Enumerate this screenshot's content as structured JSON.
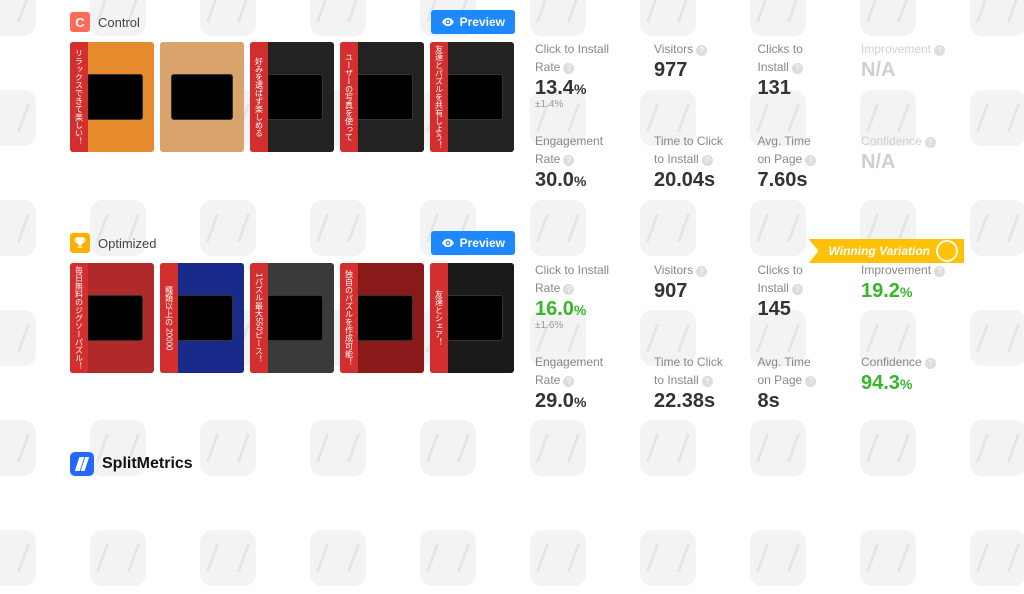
{
  "logo": {
    "text": "SplitMetrics"
  },
  "preview_label": "Preview",
  "winning_label": "Winning Variation",
  "colors": {
    "primary_blue": "#1e88ff",
    "green": "#35b729",
    "ribbon": "#ffc107",
    "control_badge": "#ff6b57",
    "optimized_badge": "#ffb000"
  },
  "variants": [
    {
      "id": "control",
      "badge": "C",
      "title": "Control",
      "shots": [
        {
          "bg": "#e68a2e",
          "tag": "リラックスできて楽しい！"
        },
        {
          "bg": "#d9a36b",
          "tag": ""
        },
        {
          "bg": "#222222",
          "tag": "好みを選ばず楽しめる"
        },
        {
          "bg": "#222222",
          "tag": "ユーザーの写真を使って"
        },
        {
          "bg": "#222222",
          "tag": "友達とパズルを共有しよう！"
        }
      ],
      "metrics": {
        "ctir_label1": "Click to Install",
        "ctir_label2": "Rate",
        "ctir_value": "13.4",
        "ctir_ci": "±1.4%",
        "visitors_label": "Visitors",
        "visitors_value": "977",
        "clicks_label1": "Clicks to",
        "clicks_label2": "Install",
        "clicks_value": "131",
        "improvement_label": "Improvement",
        "improvement_value": "N/A",
        "improvement_faded": true,
        "er_label1": "Engagement",
        "er_label2": "Rate",
        "er_value": "30.0",
        "ttc_label1": "Time to Click",
        "ttc_label2": "to Install",
        "ttc_value": "20.04s",
        "avgtime_label1": "Avg. Time",
        "avgtime_label2": "on Page",
        "avgtime_value": "7.60s",
        "confidence_label": "Confidence",
        "confidence_value": "N/A",
        "confidence_faded": true
      }
    },
    {
      "id": "optimized",
      "badge": "trophy",
      "title": "Optimized",
      "winning": true,
      "shots": [
        {
          "bg": "#b02a2a",
          "tag": "毎日無料のジグソーパズル！"
        },
        {
          "bg": "#1a2a8a",
          "tag": "種類以上の 20000"
        },
        {
          "bg": "#3a3a3a",
          "tag": "1パズル最大550ピース！"
        },
        {
          "bg": "#8a1a1a",
          "tag": "独自のパズルを作成可能！"
        },
        {
          "bg": "#1a1a1a",
          "tag": "友達とシェア！"
        }
      ],
      "metrics": {
        "ctir_label1": "Click to Install",
        "ctir_label2": "Rate",
        "ctir_value": "16.0",
        "ctir_green": true,
        "ctir_ci": "±1.6%",
        "visitors_label": "Visitors",
        "visitors_value": "907",
        "clicks_label1": "Clicks to",
        "clicks_label2": "Install",
        "clicks_value": "145",
        "improvement_label": "Improvement",
        "improvement_value": "19.2",
        "improvement_green": true,
        "er_label1": "Engagement",
        "er_label2": "Rate",
        "er_value": "29.0",
        "ttc_label1": "Time to Click",
        "ttc_label2": "to Install",
        "ttc_value": "22.38s",
        "avgtime_label1": "Avg. Time",
        "avgtime_label2": "on Page",
        "avgtime_value": "8s",
        "confidence_label": "Confidence",
        "confidence_value": "94.3",
        "confidence_green": true
      }
    }
  ]
}
